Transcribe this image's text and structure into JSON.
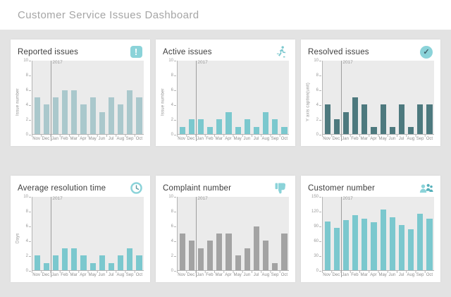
{
  "header": {
    "title": "Customer Service Issues Dashboard"
  },
  "colors": {
    "dashboard_bg": "#e3e3e3",
    "card_bg": "#ffffff",
    "plot_bg": "#ebebeb",
    "axis": "#b5b5b5",
    "header_text": "#a5a5a5",
    "chart_title_text": "#3d3d3d",
    "icon_teal": "#8bd3d9",
    "teal_bright": "#7bc8ce",
    "teal_muted": "#aac8cc",
    "teal_dark": "#4d797e",
    "gray_bar": "#a3a3a3"
  },
  "icons": {
    "reported_glyph": "!",
    "resolved_glyph": "✓"
  },
  "chart_data": [
    {
      "type": "bar",
      "title": "Reported issues",
      "icon": "exclamation-icon",
      "ylabel": "Issue number",
      "xlabel": "",
      "categories": [
        "Nov",
        "Dec",
        "Jan",
        "Feb",
        "Mar",
        "Apr",
        "May",
        "Jun",
        "Jul",
        "Aug",
        "Sep",
        "Oct"
      ],
      "values": [
        5,
        4,
        5,
        6,
        6,
        4,
        5,
        3,
        5,
        4,
        6,
        5
      ],
      "ylim": [
        0,
        10
      ],
      "y_ticks": [
        0,
        2,
        4,
        6,
        8,
        10
      ],
      "grid": false,
      "legend": false,
      "year_annotation": "2017",
      "year_line_before_category": "Jan",
      "bar_color": "#aac8cc"
    },
    {
      "type": "bar",
      "title": "Active issues",
      "icon": "runner-icon",
      "ylabel": "Issue number",
      "xlabel": "",
      "categories": [
        "Nov",
        "Dec",
        "Jan",
        "Feb",
        "Mar",
        "Apr",
        "May",
        "Jun",
        "Jul",
        "Aug",
        "Sep",
        "Oct"
      ],
      "values": [
        1,
        2,
        2,
        1,
        2,
        3,
        1,
        2,
        1,
        3,
        2,
        1
      ],
      "ylim": [
        0,
        10
      ],
      "y_ticks": [
        0,
        2,
        4,
        6,
        8,
        10
      ],
      "grid": false,
      "legend": false,
      "year_annotation": "2017",
      "year_line_before_category": "Jan",
      "bar_color": "#7bc8ce"
    },
    {
      "type": "bar",
      "title": "Resolved issues",
      "icon": "check-circle-icon",
      "ylabel": "Y axis caption(unit)",
      "xlabel": "",
      "categories": [
        "Nov",
        "Dec",
        "Jan",
        "Feb",
        "Mar",
        "Apr",
        "May",
        "Jun",
        "Jul",
        "Aug",
        "Sep",
        "Oct"
      ],
      "values": [
        4,
        2,
        3,
        5,
        4,
        1,
        4,
        1,
        4,
        1,
        4,
        4
      ],
      "ylim": [
        0,
        10
      ],
      "y_ticks": [
        0,
        2,
        4,
        6,
        8,
        10
      ],
      "grid": false,
      "legend": false,
      "year_annotation": "2017",
      "year_line_before_category": "Jan",
      "bar_color": "#4d797e"
    },
    {
      "type": "bar",
      "title": "Average resolution time",
      "icon": "clock-icon",
      "ylabel": "Days",
      "xlabel": "",
      "categories": [
        "Nov",
        "Dec",
        "Jan",
        "Feb",
        "Mar",
        "Apr",
        "May",
        "Jun",
        "Jul",
        "Aug",
        "Sep",
        "Oct"
      ],
      "values": [
        2,
        1,
        2,
        3,
        3,
        2,
        1,
        2,
        1,
        2,
        3,
        2
      ],
      "ylim": [
        0,
        10
      ],
      "y_ticks": [
        0,
        2,
        4,
        6,
        8,
        10
      ],
      "grid": false,
      "legend": false,
      "year_annotation": "2017",
      "year_line_before_category": "Jan",
      "bar_color": "#7bc8ce"
    },
    {
      "type": "bar",
      "title": "Complaint number",
      "icon": "thumbs-down-icon",
      "ylabel": "",
      "xlabel": "",
      "categories": [
        "Nov",
        "Dec",
        "Jan",
        "Feb",
        "Mar",
        "Apr",
        "May",
        "Jun",
        "Jul",
        "Aug",
        "Sep",
        "Oct"
      ],
      "values": [
        5,
        4,
        3,
        4,
        5,
        5,
        2,
        3,
        6,
        4,
        1,
        5
      ],
      "ylim": [
        0,
        10
      ],
      "y_ticks": [
        0,
        2,
        4,
        6,
        8,
        10
      ],
      "grid": false,
      "legend": false,
      "year_annotation": "2017",
      "year_line_before_category": "Jan",
      "bar_color": "#a3a3a3"
    },
    {
      "type": "bar",
      "title": "Customer number",
      "icon": "people-icon",
      "ylabel": "",
      "xlabel": "",
      "categories": [
        "Nov",
        "Dec",
        "Jan",
        "Feb",
        "Mar",
        "Apr",
        "May",
        "Jun",
        "Jul",
        "Aug",
        "Sep",
        "Oct"
      ],
      "values": [
        100,
        86,
        102,
        113,
        105,
        98,
        124,
        108,
        92,
        83,
        116,
        105
      ],
      "ylim": [
        0,
        150
      ],
      "y_ticks": [
        0,
        30,
        60,
        90,
        120,
        150
      ],
      "grid": false,
      "legend": false,
      "year_annotation": "2017",
      "year_line_before_category": "Jan",
      "bar_color": "#7bc8ce"
    }
  ]
}
